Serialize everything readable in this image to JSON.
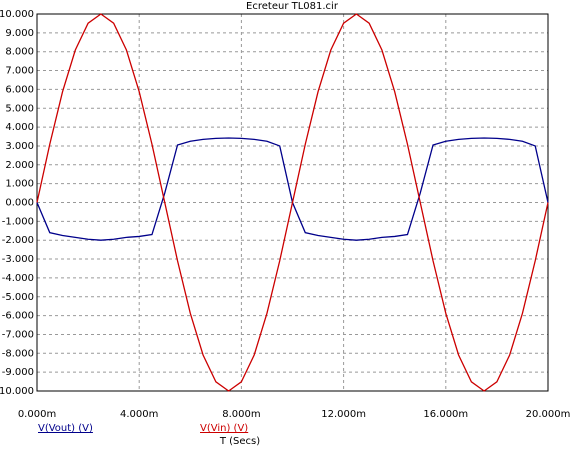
{
  "chart_data": {
    "type": "line",
    "title": "Ecreteur TL081.cir",
    "x_label": "T (Secs)",
    "x": [
      0,
      0.0005,
      0.001,
      0.0015,
      0.002,
      0.0025,
      0.003,
      0.0035,
      0.004,
      0.0045,
      0.005,
      0.0055,
      0.006,
      0.0065,
      0.007,
      0.0075,
      0.008,
      0.0085,
      0.009,
      0.0095,
      0.01,
      0.0105,
      0.011,
      0.0115,
      0.012,
      0.0125,
      0.013,
      0.0135,
      0.014,
      0.0145,
      0.015,
      0.0155,
      0.016,
      0.0165,
      0.017,
      0.0175,
      0.018,
      0.0185,
      0.019,
      0.0195,
      0.02
    ],
    "series": [
      {
        "name": "V(Vout) (V)",
        "color": "#00008b",
        "values": [
          0,
          -1.6,
          -1.75,
          -1.85,
          -1.95,
          -2.0,
          -1.95,
          -1.85,
          -1.8,
          -1.7,
          0.5,
          3.05,
          3.25,
          3.35,
          3.4,
          3.42,
          3.4,
          3.35,
          3.25,
          3.0,
          0,
          -1.6,
          -1.75,
          -1.85,
          -1.95,
          -2.0,
          -1.95,
          -1.85,
          -1.8,
          -1.7,
          0.5,
          3.05,
          3.25,
          3.35,
          3.4,
          3.42,
          3.4,
          3.35,
          3.25,
          3.0,
          0
        ]
      },
      {
        "name": "V(Vin) (V)",
        "color": "#cc0000",
        "values": [
          0,
          3.09,
          5.88,
          8.09,
          9.51,
          10,
          9.51,
          8.09,
          5.88,
          3.09,
          0,
          -3.09,
          -5.88,
          -8.09,
          -9.51,
          -10,
          -9.51,
          -8.09,
          -5.88,
          -3.09,
          0,
          3.09,
          5.88,
          8.09,
          9.51,
          10,
          9.51,
          8.09,
          5.88,
          3.09,
          0,
          -3.09,
          -5.88,
          -8.09,
          -9.51,
          -10,
          -9.51,
          -8.09,
          -5.88,
          -3.09,
          0
        ]
      }
    ],
    "xlim": [
      0,
      0.02
    ],
    "xticks": [
      {
        "value": 0,
        "label": "0.000m"
      },
      {
        "value": 0.004,
        "label": "4.000m"
      },
      {
        "value": 0.008,
        "label": "8.000m"
      },
      {
        "value": 0.012,
        "label": "12.000m"
      },
      {
        "value": 0.016,
        "label": "16.000m"
      },
      {
        "value": 0.02,
        "label": "20.000m"
      }
    ],
    "ylim": [
      -10,
      10
    ],
    "yticks": [
      {
        "value": 10,
        "label": "10.000"
      },
      {
        "value": 9,
        "label": "9.000"
      },
      {
        "value": 8,
        "label": "8.000"
      },
      {
        "value": 7,
        "label": "7.000"
      },
      {
        "value": 6,
        "label": "6.000"
      },
      {
        "value": 5,
        "label": "5.000"
      },
      {
        "value": 4,
        "label": "4.000"
      },
      {
        "value": 3,
        "label": "3.000"
      },
      {
        "value": 2,
        "label": "2.000"
      },
      {
        "value": 1,
        "label": "1.000"
      },
      {
        "value": 0,
        "label": "0.000"
      },
      {
        "value": -1,
        "label": "-1.000"
      },
      {
        "value": -2,
        "label": "-2.000"
      },
      {
        "value": -3,
        "label": "-3.000"
      },
      {
        "value": -4,
        "label": "-4.000"
      },
      {
        "value": -5,
        "label": "-5.000"
      },
      {
        "value": -6,
        "label": "-6.000"
      },
      {
        "value": -7,
        "label": "-7.000"
      },
      {
        "value": -8,
        "label": "-8.000"
      },
      {
        "value": -9,
        "label": "-9.000"
      },
      {
        "value": -10,
        "label": "-10.000"
      }
    ],
    "grid": true
  }
}
